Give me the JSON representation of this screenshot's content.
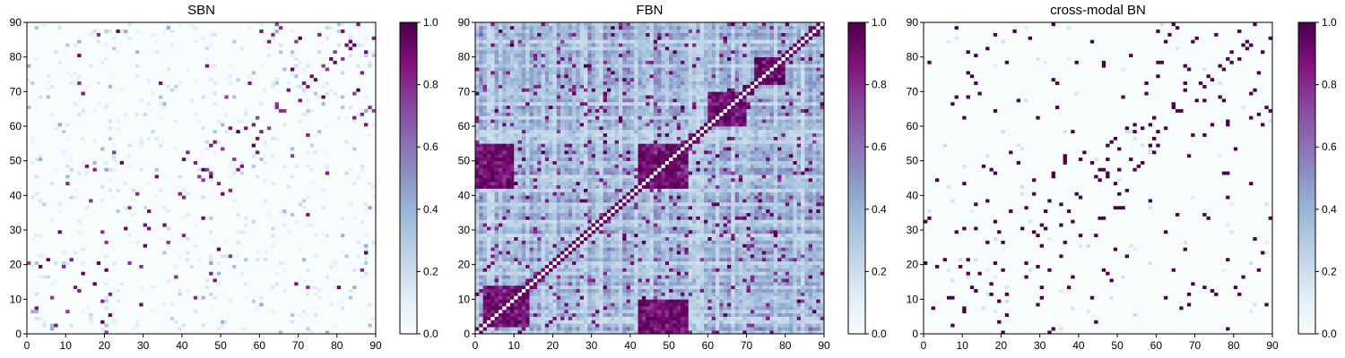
{
  "chart_data": [
    {
      "type": "heatmap",
      "title": "SBN",
      "n": 90,
      "xlim": [
        0,
        90
      ],
      "ylim": [
        0,
        90
      ],
      "xticks": [
        "0",
        "10",
        "20",
        "30",
        "40",
        "50",
        "60",
        "70",
        "80",
        "90"
      ],
      "yticks": [
        "0",
        "10",
        "20",
        "30",
        "40",
        "50",
        "60",
        "70",
        "80",
        "90"
      ],
      "colorbar": {
        "range": [
          0.0,
          1.0
        ],
        "ticks": [
          "0.0",
          "0.2",
          "0.4",
          "0.6",
          "0.8",
          "1.0"
        ]
      },
      "colormap": [
        "#f7fcfd",
        "#e0ecf4",
        "#bfd3e6",
        "#9ebcda",
        "#8c96c6",
        "#8c6bb1",
        "#88419d",
        "#810f7c",
        "#4d004b"
      ],
      "pattern": "sparse",
      "strong_cells": [
        [
          0,
          20
        ],
        [
          2,
          7
        ],
        [
          3,
          19
        ],
        [
          5,
          21
        ],
        [
          8,
          29
        ],
        [
          9,
          19
        ],
        [
          11,
          21
        ],
        [
          12,
          13
        ],
        [
          14,
          17
        ],
        [
          14,
          69
        ],
        [
          15,
          48
        ],
        [
          16,
          38
        ],
        [
          17,
          47
        ],
        [
          18,
          20
        ],
        [
          19,
          29
        ],
        [
          20,
          26
        ],
        [
          22,
          52
        ],
        [
          24,
          49
        ],
        [
          25,
          30
        ],
        [
          28,
          40
        ],
        [
          30,
          31
        ],
        [
          31,
          35
        ],
        [
          33,
          45
        ],
        [
          34,
          72
        ],
        [
          40,
          50
        ],
        [
          41,
          52
        ],
        [
          43,
          49
        ],
        [
          45,
          47
        ],
        [
          47,
          54
        ],
        [
          48,
          55
        ],
        [
          51,
          68
        ],
        [
          52,
          59
        ],
        [
          56,
          59
        ],
        [
          57,
          72
        ],
        [
          59,
          62
        ],
        [
          60,
          87
        ],
        [
          62,
          84
        ],
        [
          63,
          86
        ],
        [
          66,
          64
        ],
        [
          67,
          70
        ],
        [
          68,
          76
        ],
        [
          70,
          85
        ],
        [
          72,
          13
        ],
        [
          73,
          74
        ],
        [
          75,
          86
        ],
        [
          76,
          77
        ],
        [
          77,
          46
        ],
        [
          79,
          81
        ],
        [
          81,
          87
        ],
        [
          83,
          84
        ],
        [
          84,
          69
        ],
        [
          85,
          89
        ],
        [
          86,
          18
        ],
        [
          87,
          23
        ],
        [
          88,
          65
        ],
        [
          89,
          64
        ],
        [
          10,
          43
        ],
        [
          13,
          80
        ],
        [
          36,
          26
        ],
        [
          44,
          45
        ],
        [
          46,
          47
        ],
        [
          54,
          58
        ],
        [
          58,
          60
        ],
        [
          64,
          65
        ],
        [
          71,
          72
        ],
        [
          78,
          79
        ],
        [
          82,
          83
        ],
        [
          6,
          10
        ],
        [
          39,
          40
        ],
        [
          50,
          53
        ]
      ]
    },
    {
      "type": "heatmap",
      "title": "FBN",
      "n": 90,
      "xlim": [
        0,
        90
      ],
      "ylim": [
        0,
        90
      ],
      "xticks": [
        "0",
        "10",
        "20",
        "30",
        "40",
        "50",
        "60",
        "70",
        "80",
        "90"
      ],
      "yticks": [
        "0",
        "10",
        "20",
        "30",
        "40",
        "50",
        "60",
        "70",
        "80",
        "90"
      ],
      "colorbar": {
        "range": [
          0.0,
          1.0
        ],
        "ticks": [
          "0.0",
          "0.2",
          "0.4",
          "0.6",
          "0.8",
          "1.0"
        ]
      },
      "colormap": [
        "#f7fcfd",
        "#e0ecf4",
        "#bfd3e6",
        "#9ebcda",
        "#8c96c6",
        "#8c6bb1",
        "#88419d",
        "#810f7c",
        "#4d004b"
      ],
      "pattern": "dense",
      "strong_blocks": [
        [
          42,
          55,
          42,
          55
        ],
        [
          72,
          80,
          72,
          80
        ],
        [
          60,
          70,
          60,
          70
        ],
        [
          2,
          14,
          2,
          14
        ],
        [
          0,
          10,
          42,
          55
        ],
        [
          42,
          55,
          0,
          10
        ]
      ]
    },
    {
      "type": "heatmap",
      "title": "cross-modal BN",
      "n": 90,
      "xlim": [
        0,
        90
      ],
      "ylim": [
        0,
        90
      ],
      "xticks": [
        "0",
        "10",
        "20",
        "30",
        "40",
        "50",
        "60",
        "70",
        "80",
        "90"
      ],
      "yticks": [
        "0",
        "10",
        "20",
        "30",
        "40",
        "50",
        "60",
        "70",
        "80",
        "90"
      ],
      "colorbar": {
        "range": [
          0.0,
          1.0
        ],
        "ticks": [
          "0.0",
          "0.2",
          "0.4",
          "0.6",
          "0.8",
          "1.0"
        ]
      },
      "colormap": [
        "#f7fcfd",
        "#e0ecf4",
        "#bfd3e6",
        "#9ebcda",
        "#8c96c6",
        "#8c6bb1",
        "#88419d",
        "#810f7c",
        "#4d004b"
      ],
      "pattern": "binary"
    }
  ]
}
